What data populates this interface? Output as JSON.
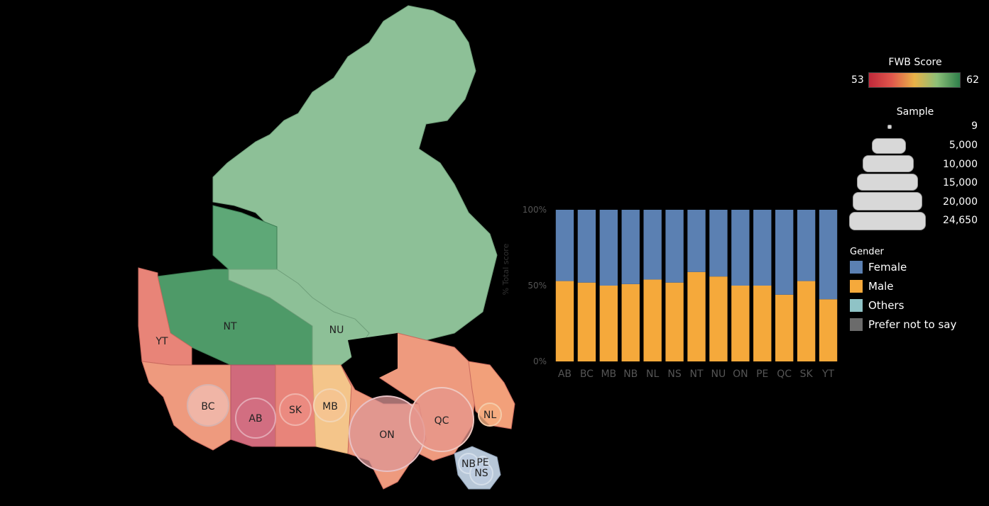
{
  "colors": {
    "female": "#5b80b2",
    "male": "#f5a93b",
    "others": "#8fc3c6",
    "prefer_not": "#6b6b6b"
  },
  "map": {
    "region_labels": [
      {
        "id": "YT",
        "label": "YT"
      },
      {
        "id": "NT",
        "label": "NT"
      },
      {
        "id": "NU",
        "label": "NU"
      },
      {
        "id": "BC",
        "label": "BC"
      },
      {
        "id": "AB",
        "label": "AB"
      },
      {
        "id": "SK",
        "label": "SK"
      },
      {
        "id": "MB",
        "label": "MB"
      },
      {
        "id": "ON",
        "label": "ON"
      },
      {
        "id": "QC",
        "label": "QC"
      },
      {
        "id": "NL",
        "label": "NL"
      },
      {
        "id": "NB",
        "label": "NB"
      },
      {
        "id": "PE",
        "label": "PE"
      },
      {
        "id": "NS",
        "label": "NS"
      }
    ]
  },
  "chart_data": {
    "type": "bar",
    "stacked": true,
    "categories": [
      "AB",
      "BC",
      "MB",
      "NB",
      "NL",
      "NS",
      "NT",
      "NU",
      "ON",
      "PE",
      "QC",
      "SK",
      "YT"
    ],
    "ylabel": "% Total score",
    "yticks": [
      "100%",
      "50%",
      "0%"
    ],
    "ylim": [
      0,
      100
    ],
    "series": [
      {
        "name": "Male",
        "color": "#f5a93b",
        "values": [
          53,
          52,
          50,
          51,
          54,
          52,
          59,
          56,
          50,
          50,
          44,
          53,
          41
        ]
      },
      {
        "name": "Female",
        "color": "#5b80b2",
        "values": [
          47,
          48,
          50,
          49,
          46,
          48,
          41,
          44,
          50,
          50,
          56,
          47,
          59
        ]
      }
    ]
  },
  "fwb_legend": {
    "title": "FWB Score",
    "min": "53",
    "max": "62"
  },
  "sample_legend": {
    "title": "Sample",
    "items": [
      "9",
      "5,000",
      "10,000",
      "15,000",
      "20,000",
      "24,650"
    ]
  },
  "gender_legend": {
    "title": "Gender",
    "items": [
      {
        "label": "Female",
        "color": "#5b80b2"
      },
      {
        "label": "Male",
        "color": "#f5a93b"
      },
      {
        "label": "Others",
        "color": "#8fc3c6"
      },
      {
        "label": "Prefer not to say",
        "color": "#6b6b6b"
      }
    ]
  }
}
